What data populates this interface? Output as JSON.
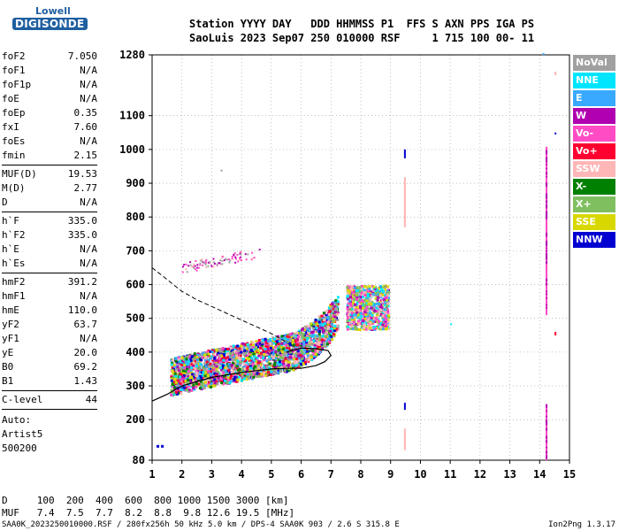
{
  "logo": {
    "line1": "Lowell",
    "line2": "DIGISONDE"
  },
  "header": {
    "line1": "Station YYYY DAY   DDD HHMMSS P1  FFS S AXN PPS IGA PS",
    "line2": "SaoLuis 2023 Sep07 250 010000 RSF     1 715 100 00- 11"
  },
  "params": [
    {
      "group": [
        {
          "label": "foF2",
          "value": "7.050"
        },
        {
          "label": "foF1",
          "value": "N/A"
        },
        {
          "label": "foF1p",
          "value": "N/A"
        },
        {
          "label": "foE",
          "value": "N/A"
        },
        {
          "label": "foEp",
          "value": "0.35"
        },
        {
          "label": "fxI",
          "value": "7.60"
        },
        {
          "label": "foEs",
          "value": "N/A"
        },
        {
          "label": "fmin",
          "value": "2.15"
        }
      ]
    },
    {
      "group": [
        {
          "label": "MUF(D)",
          "value": "19.53"
        },
        {
          "label": "M(D)",
          "value": "2.77"
        },
        {
          "label": "D",
          "value": "N/A"
        }
      ]
    },
    {
      "group": [
        {
          "label": "h`F",
          "value": "335.0"
        },
        {
          "label": "h`F2",
          "value": "335.0"
        },
        {
          "label": "h`E",
          "value": "N/A"
        },
        {
          "label": "h`Es",
          "value": "N/A"
        }
      ]
    },
    {
      "group": [
        {
          "label": "hmF2",
          "value": "391.2"
        },
        {
          "label": "hmF1",
          "value": "N/A"
        },
        {
          "label": "hmE",
          "value": "110.0"
        },
        {
          "label": "yF2",
          "value": "63.7"
        },
        {
          "label": "yF1",
          "value": "N/A"
        },
        {
          "label": "yE",
          "value": "20.0"
        },
        {
          "label": "B0",
          "value": "69.2"
        },
        {
          "label": "B1",
          "value": "1.43"
        }
      ]
    },
    {
      "group": [
        {
          "label": "C-level",
          "value": "44"
        }
      ]
    }
  ],
  "autoscale": [
    "Auto:",
    "Artist5",
    "500200"
  ],
  "legend": [
    {
      "label": "NoVal",
      "color": "#a0a0a0"
    },
    {
      "label": "NNE",
      "color": "#00e5ff"
    },
    {
      "label": "E",
      "color": "#39a9ff"
    },
    {
      "label": "W",
      "color": "#b000b0"
    },
    {
      "label": "Vo-",
      "color": "#ff4cc4"
    },
    {
      "label": "Vo+",
      "color": "#ff0030"
    },
    {
      "label": "SSW",
      "color": "#ffb6b6"
    },
    {
      "label": "X-",
      "color": "#008000"
    },
    {
      "label": "X+",
      "color": "#7fbf5f"
    },
    {
      "label": "SSE",
      "color": "#d8d800"
    },
    {
      "label": "NNW",
      "color": "#0000d0"
    }
  ],
  "bottom_table": {
    "row1": "D     100  200  400  600  800 1000 1500 3000 [km]",
    "row2": "MUF   7.4  7.5  7.7  8.2  8.8  9.8 12.6 19.5 [MHz]"
  },
  "footer": {
    "left": "SAA0K_2023250010000.RSF / 280fx256h 50 kHz 5.0 km / DPS-4 SAA0K 903 / 2.6 S 315.8 E",
    "right": "Ion2Png 1.3.17"
  },
  "chart_data": {
    "type": "scatter",
    "xlim": [
      1,
      15
    ],
    "ylim": [
      80,
      1280
    ],
    "x_ticks": [
      1,
      2,
      3,
      4,
      5,
      6,
      7,
      8,
      9,
      10,
      11,
      12,
      13,
      14,
      15
    ],
    "y_ticks": [
      80,
      200,
      300,
      400,
      500,
      600,
      700,
      800,
      900,
      1000,
      1100,
      1280
    ],
    "grid": "dotted",
    "profile_curve": {
      "x": [
        1.0,
        1.5,
        2.0,
        3.0,
        4.0,
        5.0,
        5.5,
        6.0,
        6.5,
        6.8,
        7.0,
        6.9,
        6.5,
        6.0,
        5.5
      ],
      "y": [
        255,
        275,
        300,
        325,
        340,
        350,
        352,
        352,
        360,
        372,
        390,
        405,
        410,
        412,
        400
      ]
    },
    "dashed_curve": {
      "x": [
        1.0,
        1.5,
        2.0,
        2.5,
        3.0,
        3.5,
        4.0,
        4.5,
        5.0,
        5.5
      ],
      "y": [
        650,
        615,
        580,
        555,
        535,
        515,
        495,
        475,
        455,
        430
      ]
    }
  }
}
